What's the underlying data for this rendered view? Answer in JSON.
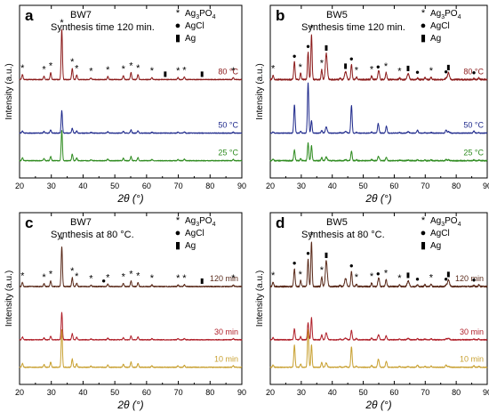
{
  "figure": {
    "background": "#ffffff",
    "panels_count": 4
  },
  "chart_data": [
    {
      "type": "line",
      "panel_letter": "a",
      "title": "BW7",
      "subtitle": "Synthesis time 120 min.",
      "xlabel": "2θ (°)",
      "ylabel": "Intensity (a.u.)",
      "xlim": [
        20,
        90
      ],
      "x_ticks": [
        20,
        30,
        40,
        50,
        60,
        70,
        80,
        90
      ],
      "grid": false,
      "legend_position": "top-right",
      "legend": [
        {
          "marker": "*",
          "label": "Ag3PO4",
          "label_main": "Ag",
          "label_sub": "3",
          "label_tail": "PO",
          "label_sub2": "4"
        },
        {
          "marker": "●",
          "label": "AgCl",
          "label_main": "AgCl"
        },
        {
          "marker": "▮",
          "label": "Ag",
          "label_main": "Ag"
        }
      ],
      "pattern": "ag3po4",
      "series": [
        {
          "name": "80 °C",
          "color": "#8b1a1a",
          "noise": 0.5,
          "ag3po4_scale": 1.0,
          "agcl_scale": 0,
          "ag_scale": 0
        },
        {
          "name": "50 °C",
          "color": "#1f2a8c",
          "noise": 0.5,
          "ag3po4_scale": 0.45,
          "agcl_scale": 0,
          "ag_scale": 0
        },
        {
          "name": "25 °C",
          "color": "#2e8b1f",
          "noise": 0.5,
          "ag3po4_scale": 0.6,
          "agcl_scale": 0,
          "ag_scale": 0
        }
      ],
      "marks": [
        {
          "x": 20.9,
          "symbol": "*"
        },
        {
          "x": 27.7,
          "symbol": "*"
        },
        {
          "x": 29.8,
          "symbol": "*"
        },
        {
          "x": 33.3,
          "symbol": "*"
        },
        {
          "x": 36.6,
          "symbol": "*"
        },
        {
          "x": 38.0,
          "symbol": "*"
        },
        {
          "x": 42.5,
          "symbol": "*"
        },
        {
          "x": 47.8,
          "symbol": "*"
        },
        {
          "x": 52.7,
          "symbol": "*"
        },
        {
          "x": 55.1,
          "symbol": "*"
        },
        {
          "x": 57.3,
          "symbol": "*"
        },
        {
          "x": 61.7,
          "symbol": "*"
        },
        {
          "x": 65.9,
          "symbol": "▮"
        },
        {
          "x": 69.9,
          "symbol": "*"
        },
        {
          "x": 71.9,
          "symbol": "*"
        },
        {
          "x": 77.5,
          "symbol": "▮"
        },
        {
          "x": 87.3,
          "symbol": "*"
        }
      ]
    },
    {
      "type": "line",
      "panel_letter": "b",
      "title": "BW5",
      "subtitle": "Synthesis time 120 min.",
      "xlabel": "2θ (°)",
      "ylabel": "Intensity (a.u.)",
      "xlim": [
        20,
        90
      ],
      "x_ticks": [
        20,
        30,
        40,
        50,
        60,
        70,
        80,
        90
      ],
      "grid": false,
      "legend_position": "top-right",
      "legend": [
        {
          "marker": "*",
          "label": "Ag3PO4",
          "label_main": "Ag",
          "label_sub": "3",
          "label_tail": "PO",
          "label_sub2": "4"
        },
        {
          "marker": "●",
          "label": "AgCl",
          "label_main": "AgCl"
        },
        {
          "marker": "▮",
          "label": "Ag",
          "label_main": "Ag"
        }
      ],
      "pattern": "mixed",
      "series": [
        {
          "name": "80 °C",
          "color": "#8b1a1a",
          "noise": 0.9,
          "ag3po4_scale": 0.9,
          "agcl_scale": 0.55,
          "ag_scale": 0.45
        },
        {
          "name": "50 °C",
          "color": "#1f2a8c",
          "noise": 0.5,
          "ag3po4_scale": 0.25,
          "agcl_scale": 1.0,
          "ag_scale": 0.1
        },
        {
          "name": "25 °C",
          "color": "#2e8b1f",
          "noise": 0.7,
          "ag3po4_scale": 0.3,
          "agcl_scale": 0.35,
          "ag_scale": 0.05
        }
      ],
      "marks": [
        {
          "x": 20.9,
          "symbol": "*"
        },
        {
          "x": 27.8,
          "symbol": "●"
        },
        {
          "x": 29.7,
          "symbol": "*"
        },
        {
          "x": 32.2,
          "symbol": "●"
        },
        {
          "x": 33.3,
          "symbol": "*"
        },
        {
          "x": 36.6,
          "symbol": "*"
        },
        {
          "x": 38.1,
          "symbol": "▮"
        },
        {
          "x": 44.3,
          "symbol": "▮"
        },
        {
          "x": 46.2,
          "symbol": "●"
        },
        {
          "x": 47.8,
          "symbol": "*"
        },
        {
          "x": 52.7,
          "symbol": "*"
        },
        {
          "x": 54.8,
          "symbol": "●"
        },
        {
          "x": 57.3,
          "symbol": "*"
        },
        {
          "x": 61.7,
          "symbol": "*"
        },
        {
          "x": 64.5,
          "symbol": "▮"
        },
        {
          "x": 67.5,
          "symbol": "●"
        },
        {
          "x": 71.9,
          "symbol": "*"
        },
        {
          "x": 76.7,
          "symbol": "●"
        },
        {
          "x": 77.5,
          "symbol": "▮"
        },
        {
          "x": 85.7,
          "symbol": "●"
        }
      ]
    },
    {
      "type": "line",
      "panel_letter": "c",
      "title": "BW7",
      "subtitle": "Synthesis at 80 °C.",
      "xlabel": "2θ (°)",
      "ylabel": "Intensity (a.u.)",
      "xlim": [
        20,
        90
      ],
      "x_ticks": [
        20,
        30,
        40,
        50,
        60,
        70,
        80,
        90
      ],
      "grid": false,
      "legend_position": "top-right",
      "legend": [
        {
          "marker": "*",
          "label": "Ag3PO4",
          "label_main": "Ag",
          "label_sub": "3",
          "label_tail": "PO",
          "label_sub2": "4"
        },
        {
          "marker": "●",
          "label": "AgCl",
          "label_main": "AgCl"
        },
        {
          "marker": "▮",
          "label": "Ag",
          "label_main": "Ag"
        }
      ],
      "pattern": "ag3po4",
      "series": [
        {
          "name": "120 min",
          "color": "#5a2a1a",
          "noise": 0.6,
          "ag3po4_scale": 0.8,
          "agcl_scale": 0,
          "ag_scale": 0
        },
        {
          "name": "30 min",
          "color": "#b0202a",
          "noise": 0.5,
          "ag3po4_scale": 0.55,
          "agcl_scale": 0,
          "ag_scale": 0
        },
        {
          "name": "10 min",
          "color": "#c8a030",
          "noise": 0.5,
          "ag3po4_scale": 0.75,
          "agcl_scale": 0,
          "ag_scale": 0
        }
      ],
      "marks": [
        {
          "x": 20.9,
          "symbol": "*"
        },
        {
          "x": 27.7,
          "symbol": "*"
        },
        {
          "x": 29.8,
          "symbol": "*"
        },
        {
          "x": 33.3,
          "symbol": "*"
        },
        {
          "x": 36.6,
          "symbol": "*"
        },
        {
          "x": 38.0,
          "symbol": "*"
        },
        {
          "x": 42.5,
          "symbol": "*"
        },
        {
          "x": 46.5,
          "symbol": "●"
        },
        {
          "x": 47.8,
          "symbol": "*"
        },
        {
          "x": 52.7,
          "symbol": "*"
        },
        {
          "x": 55.1,
          "symbol": "*"
        },
        {
          "x": 57.3,
          "symbol": "*"
        },
        {
          "x": 61.7,
          "symbol": "*"
        },
        {
          "x": 69.9,
          "symbol": "*"
        },
        {
          "x": 71.9,
          "symbol": "*"
        },
        {
          "x": 77.5,
          "symbol": "▮"
        },
        {
          "x": 87.3,
          "symbol": "*"
        }
      ]
    },
    {
      "type": "line",
      "panel_letter": "d",
      "title": "BW5",
      "subtitle": "Synthesis at 80 °C.",
      "xlabel": "2θ (°)",
      "ylabel": "Intensity (a.u.)",
      "xlim": [
        20,
        90
      ],
      "x_ticks": [
        20,
        30,
        40,
        50,
        60,
        70,
        80,
        90
      ],
      "grid": false,
      "legend_position": "top-right",
      "legend": [
        {
          "marker": "*",
          "label": "Ag3PO4",
          "label_main": "Ag",
          "label_sub": "3",
          "label_tail": "PO",
          "label_sub2": "4"
        },
        {
          "marker": "●",
          "label": "AgCl",
          "label_main": "AgCl"
        },
        {
          "marker": "▮",
          "label": "Ag",
          "label_main": "Ag"
        }
      ],
      "pattern": "mixed",
      "series": [
        {
          "name": "120 min",
          "color": "#5a2a1a",
          "noise": 0.9,
          "ag3po4_scale": 0.9,
          "agcl_scale": 0.55,
          "ag_scale": 0.45
        },
        {
          "name": "30 min",
          "color": "#b0202a",
          "noise": 0.6,
          "ag3po4_scale": 0.45,
          "agcl_scale": 0.35,
          "ag_scale": 0.1
        },
        {
          "name": "10 min",
          "color": "#c8a030",
          "noise": 0.5,
          "ag3po4_scale": 0.45,
          "agcl_scale": 0.75,
          "ag_scale": 0.05
        }
      ],
      "marks": [
        {
          "x": 20.9,
          "symbol": "*"
        },
        {
          "x": 27.8,
          "symbol": "●"
        },
        {
          "x": 29.7,
          "symbol": "*"
        },
        {
          "x": 32.2,
          "symbol": "●"
        },
        {
          "x": 33.3,
          "symbol": "*"
        },
        {
          "x": 36.6,
          "symbol": "*"
        },
        {
          "x": 38.1,
          "symbol": "▮"
        },
        {
          "x": 46.2,
          "symbol": "●"
        },
        {
          "x": 47.8,
          "symbol": "*"
        },
        {
          "x": 52.7,
          "symbol": "*"
        },
        {
          "x": 54.8,
          "symbol": "●"
        },
        {
          "x": 57.3,
          "symbol": "*"
        },
        {
          "x": 61.7,
          "symbol": "*"
        },
        {
          "x": 64.5,
          "symbol": "▮"
        },
        {
          "x": 67.5,
          "symbol": "●"
        },
        {
          "x": 71.9,
          "symbol": "*"
        },
        {
          "x": 76.7,
          "symbol": "●"
        },
        {
          "x": 77.5,
          "symbol": "▮"
        },
        {
          "x": 85.7,
          "symbol": "●"
        }
      ]
    }
  ]
}
